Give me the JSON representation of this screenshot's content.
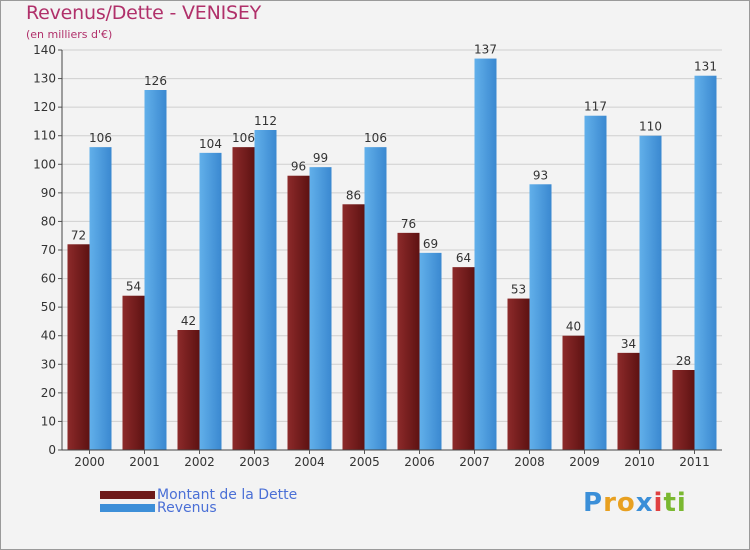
{
  "chart_data": {
    "type": "bar",
    "title": "Revenus/Dette - VENISEY",
    "subtitle": "(en milliers d'€)",
    "categories": [
      "2000",
      "2001",
      "2002",
      "2003",
      "2004",
      "2005",
      "2006",
      "2007",
      "2008",
      "2009",
      "2010",
      "2011"
    ],
    "series": [
      {
        "name": "Montant de la Dette",
        "values": [
          72,
          54,
          42,
          106,
          96,
          86,
          76,
          64,
          53,
          40,
          34,
          28
        ],
        "color": "#6e1a1a"
      },
      {
        "name": "Revenus",
        "values": [
          106,
          126,
          104,
          112,
          99,
          106,
          69,
          137,
          93,
          117,
          110,
          131
        ],
        "color": "#3d8fd8"
      }
    ],
    "ylim": [
      0,
      140
    ],
    "yticks": [
      0,
      10,
      20,
      30,
      40,
      50,
      60,
      70,
      80,
      90,
      100,
      110,
      120,
      130,
      140
    ],
    "grid": true,
    "legend": "bottom-left"
  },
  "logo": {
    "text": "Proxiti",
    "letters": [
      "P",
      "r",
      "o",
      "x",
      "i",
      "t",
      "i"
    ],
    "colors": [
      "#3b8fd8",
      "#e8a020",
      "#e8a020",
      "#3b8fd8",
      "#e04040",
      "#7ab830",
      "#7ab830"
    ]
  }
}
